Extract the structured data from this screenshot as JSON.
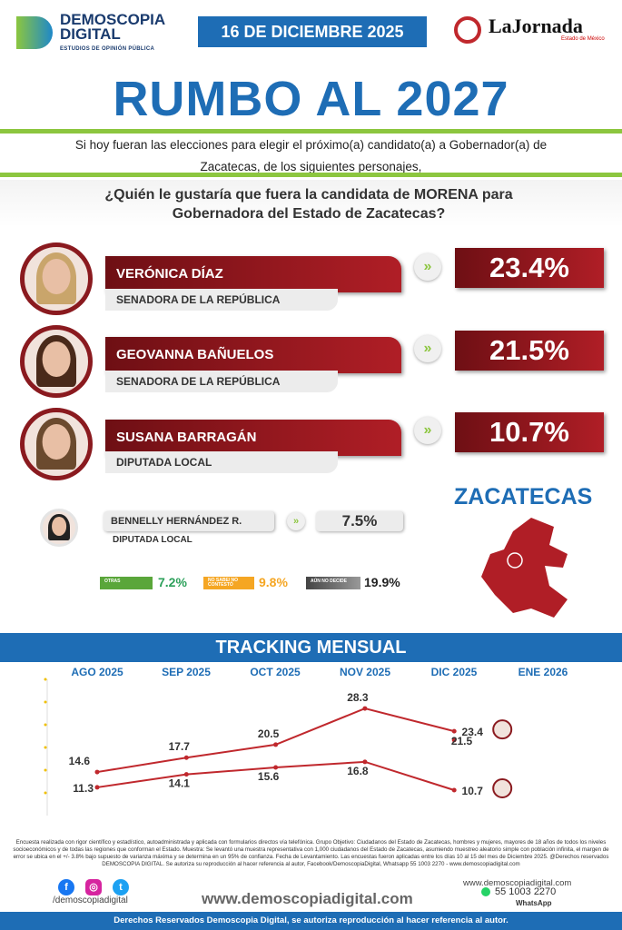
{
  "header": {
    "brand": "DEMOSCOPIA",
    "brand2": "DIGITAL",
    "brand_sub": "ESTUDIOS DE OPINIÓN PÚBLICA",
    "date": "16 DE DICIEMBRE 2025",
    "partner": "LaJornada",
    "partner_sub": "Estado de México"
  },
  "title": "RUMBO AL 2027",
  "intro": "Si hoy fueran las elecciones para elegir el próximo(a) candidato(a) a Gobernador(a) de Zacatecas, de los siguientes personajes,",
  "question": "¿Quién le gustaría que fuera la candidata de MORENA para Gobernadora del Estado de Zacatecas?",
  "candidates": [
    {
      "name": "VERÓNICA DÍAZ",
      "role": "SENADORA DE LA REPÚBLICA",
      "pct": "23.4%"
    },
    {
      "name": "GEOVANNA BAÑUELOS",
      "role": "SENADORA DE LA REPÚBLICA",
      "pct": "21.5%"
    },
    {
      "name": "SUSANA BARRAGÁN",
      "role": "DIPUTADA LOCAL",
      "pct": "10.7%"
    },
    {
      "name": "BENNELLY HERNÁNDEZ R.",
      "role": "DIPUTADA LOCAL",
      "pct": "7.5%"
    }
  ],
  "others": [
    {
      "label": "OTRAS",
      "pct": "7.2%",
      "color": "#5aa63a"
    },
    {
      "label": "NO SABE/ NO CONTESTÓ",
      "pct": "9.8%",
      "color": "#f5a623"
    },
    {
      "label": "AÚN NO DECIDE",
      "pct": "19.9%",
      "color": "#555555"
    }
  ],
  "map_label": "ZACATECAS",
  "chart_data": {
    "type": "line",
    "title": "TRACKING MENSUAL",
    "categories": [
      "AGO 2025",
      "SEP 2025",
      "OCT 2025",
      "NOV 2025",
      "DIC 2025",
      "ENE 2026"
    ],
    "series": [
      {
        "name": "Verónica Díaz",
        "values": [
          14.6,
          17.7,
          20.5,
          28.3,
          23.4,
          null
        ]
      },
      {
        "name": "Geovanna Bañuelos",
        "values": [
          null,
          null,
          null,
          null,
          21.5,
          null
        ]
      },
      {
        "name": "Susana Barragán",
        "values": [
          11.3,
          14.1,
          15.6,
          16.8,
          10.7,
          null
        ]
      }
    ],
    "color": "#c0282d"
  },
  "footer": {
    "legal": "Encuesta realizada con rigor científico y estadístico, autoadministrada y aplicada con formularios directos vía telefónica. Grupo Objetivo: Ciudadanos del Estado de Zacatecas, hombres y mujeres, mayores de 18 años de todos los niveles socioeconómicos y de todas las regiones que conforman el Estado. Muestra: Se levantó una muestra representativa con 1,000 ciudadanos del Estado de Zacatecas, asumiendo muestreo aleatorio simple con población infinita, el margen de error se ubica en el +/- 3.8% bajo supuesto de varianza máxima y se determina en un 95% de confianza. Fecha de Levantamiento. Las encuestas fueron aplicadas entre los días 10 al 15 del mes de Diciembre 2025. @Derechos reservados DEMOSCOPIA DIGITAL. Se autoriza su reproducción al hacer referencia al autor, Facebook/DemoscopiaDigital, Whatsapp 55 1003 2270 - www.demoscopiadigital.com",
    "social_handle": "/demoscopiadigital",
    "website": "www.demoscopiadigital.com",
    "website_small": "www.demoscopiadigital.com",
    "phone": "55 1003 2270",
    "whatsapp": "WhatsApp",
    "rights": "Derechos Reservados Demoscopia Digital, se autoriza reproducción al hacer referencia al autor."
  }
}
